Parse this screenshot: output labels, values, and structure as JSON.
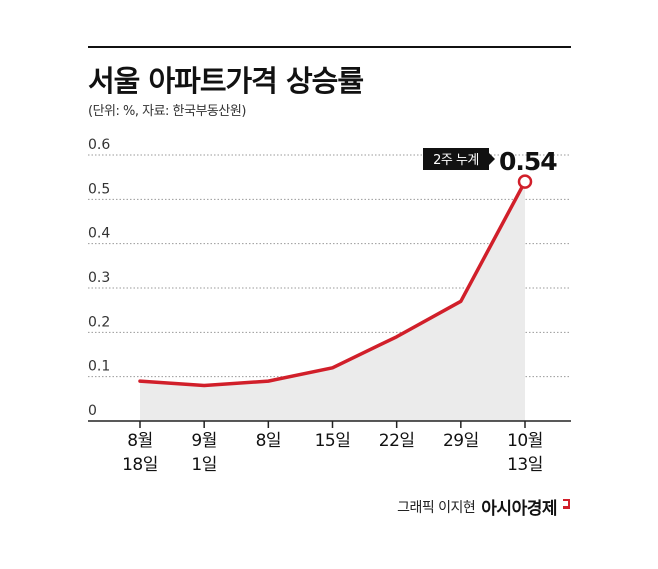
{
  "chart_data": {
    "type": "area",
    "title": "서울 아파트가격 상승률",
    "subtitle": "(단위: %, 자료: 한국부동산원)",
    "categories": [
      [
        "8월",
        "18일"
      ],
      [
        "9월",
        "1일"
      ],
      [
        "8일"
      ],
      [
        "15일"
      ],
      [
        "22일"
      ],
      [
        "29일"
      ],
      [
        "10월",
        "13일"
      ]
    ],
    "values": [
      0.09,
      0.08,
      0.09,
      0.12,
      0.19,
      0.27,
      0.54
    ],
    "y_ticks": [
      "0",
      "0.1",
      "0.2",
      "0.3",
      "0.4",
      "0.5",
      "0.6"
    ],
    "ylim": [
      0,
      0.6
    ],
    "grid": true,
    "line_color": "#d11f2a",
    "fill_color": "#ebebeb",
    "annotation": {
      "tag": "2주 누계",
      "value": "0.54"
    }
  },
  "credit": {
    "label": "그래픽 이지현",
    "brand": "아시아경제",
    "brand_color": "#d11f2a"
  }
}
